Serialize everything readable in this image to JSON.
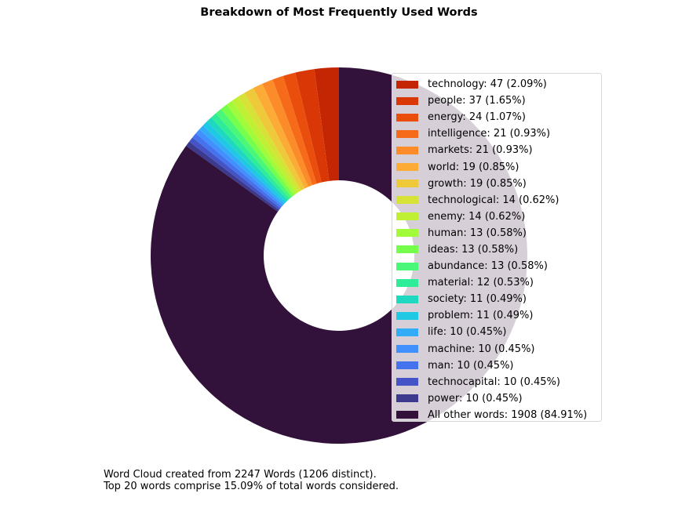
{
  "chart_data": {
    "type": "pie",
    "title": "Breakdown of Most Frequently Used Words",
    "donut": true,
    "start": "top, counterclockwise",
    "legend_position": "right, overlapping chart",
    "slices": [
      {
        "label": "technology: 47 (2.09%)",
        "word": "technology",
        "value": 47,
        "color": "#c42503"
      },
      {
        "label": "people: 37 (1.65%)",
        "word": "people",
        "value": 37,
        "color": "#d93806"
      },
      {
        "label": "energy: 24 (1.07%)",
        "word": "energy",
        "value": 24,
        "color": "#ea4e0d"
      },
      {
        "label": "intelligence: 21 (0.93%)",
        "word": "intelligence",
        "value": 21,
        "color": "#f66b19"
      },
      {
        "label": "markets: 21 (0.93%)",
        "word": "markets",
        "value": 21,
        "color": "#fc8b29"
      },
      {
        "label": "world: 19 (0.85%)",
        "word": "world",
        "value": 19,
        "color": "#fbab36"
      },
      {
        "label": "growth: 19 (0.85%)",
        "word": "growth",
        "value": 19,
        "color": "#eec93a"
      },
      {
        "label": "technological: 14 (0.62%)",
        "word": "technological",
        "value": 14,
        "color": "#d7e236"
      },
      {
        "label": "enemy: 14 (0.62%)",
        "word": "enemy",
        "value": 14,
        "color": "#c0f033"
      },
      {
        "label": "human: 13 (0.58%)",
        "word": "human",
        "value": 13,
        "color": "#a1fb3b"
      },
      {
        "label": "ideas: 13 (0.58%)",
        "word": "ideas",
        "value": 13,
        "color": "#76fe4c"
      },
      {
        "label": "abundance: 13 (0.58%)",
        "word": "abundance",
        "value": 13,
        "color": "#4af778"
      },
      {
        "label": "material: 12 (0.53%)",
        "word": "material",
        "value": 12,
        "color": "#2fec98"
      },
      {
        "label": "society: 11 (0.49%)",
        "word": "society",
        "value": 11,
        "color": "#1fd8c0"
      },
      {
        "label": "problem: 11 (0.49%)",
        "word": "problem",
        "value": 11,
        "color": "#1fc8e3"
      },
      {
        "label": "life: 10 (0.45%)",
        "word": "life",
        "value": 10,
        "color": "#33acf8"
      },
      {
        "label": "machine: 10 (0.45%)",
        "word": "machine",
        "value": 10,
        "color": "#4290fe"
      },
      {
        "label": "man: 10 (0.45%)",
        "word": "man",
        "value": 10,
        "color": "#4572ed"
      },
      {
        "label": "technocapital: 10 (0.45%)",
        "word": "technocapital",
        "value": 10,
        "color": "#4454c6"
      },
      {
        "label": "power: 10 (0.45%)",
        "word": "power",
        "value": 10,
        "color": "#3c3a8f"
      },
      {
        "label": "All other words: 1908 (84.91%)",
        "word": "All other words",
        "value": 1908,
        "color": "#32123a"
      }
    ]
  },
  "footnote": {
    "line1": "Word Cloud created from 2247 Words (1206 distinct).",
    "line2": "Top 20 words comprise 15.09% of total words considered."
  }
}
